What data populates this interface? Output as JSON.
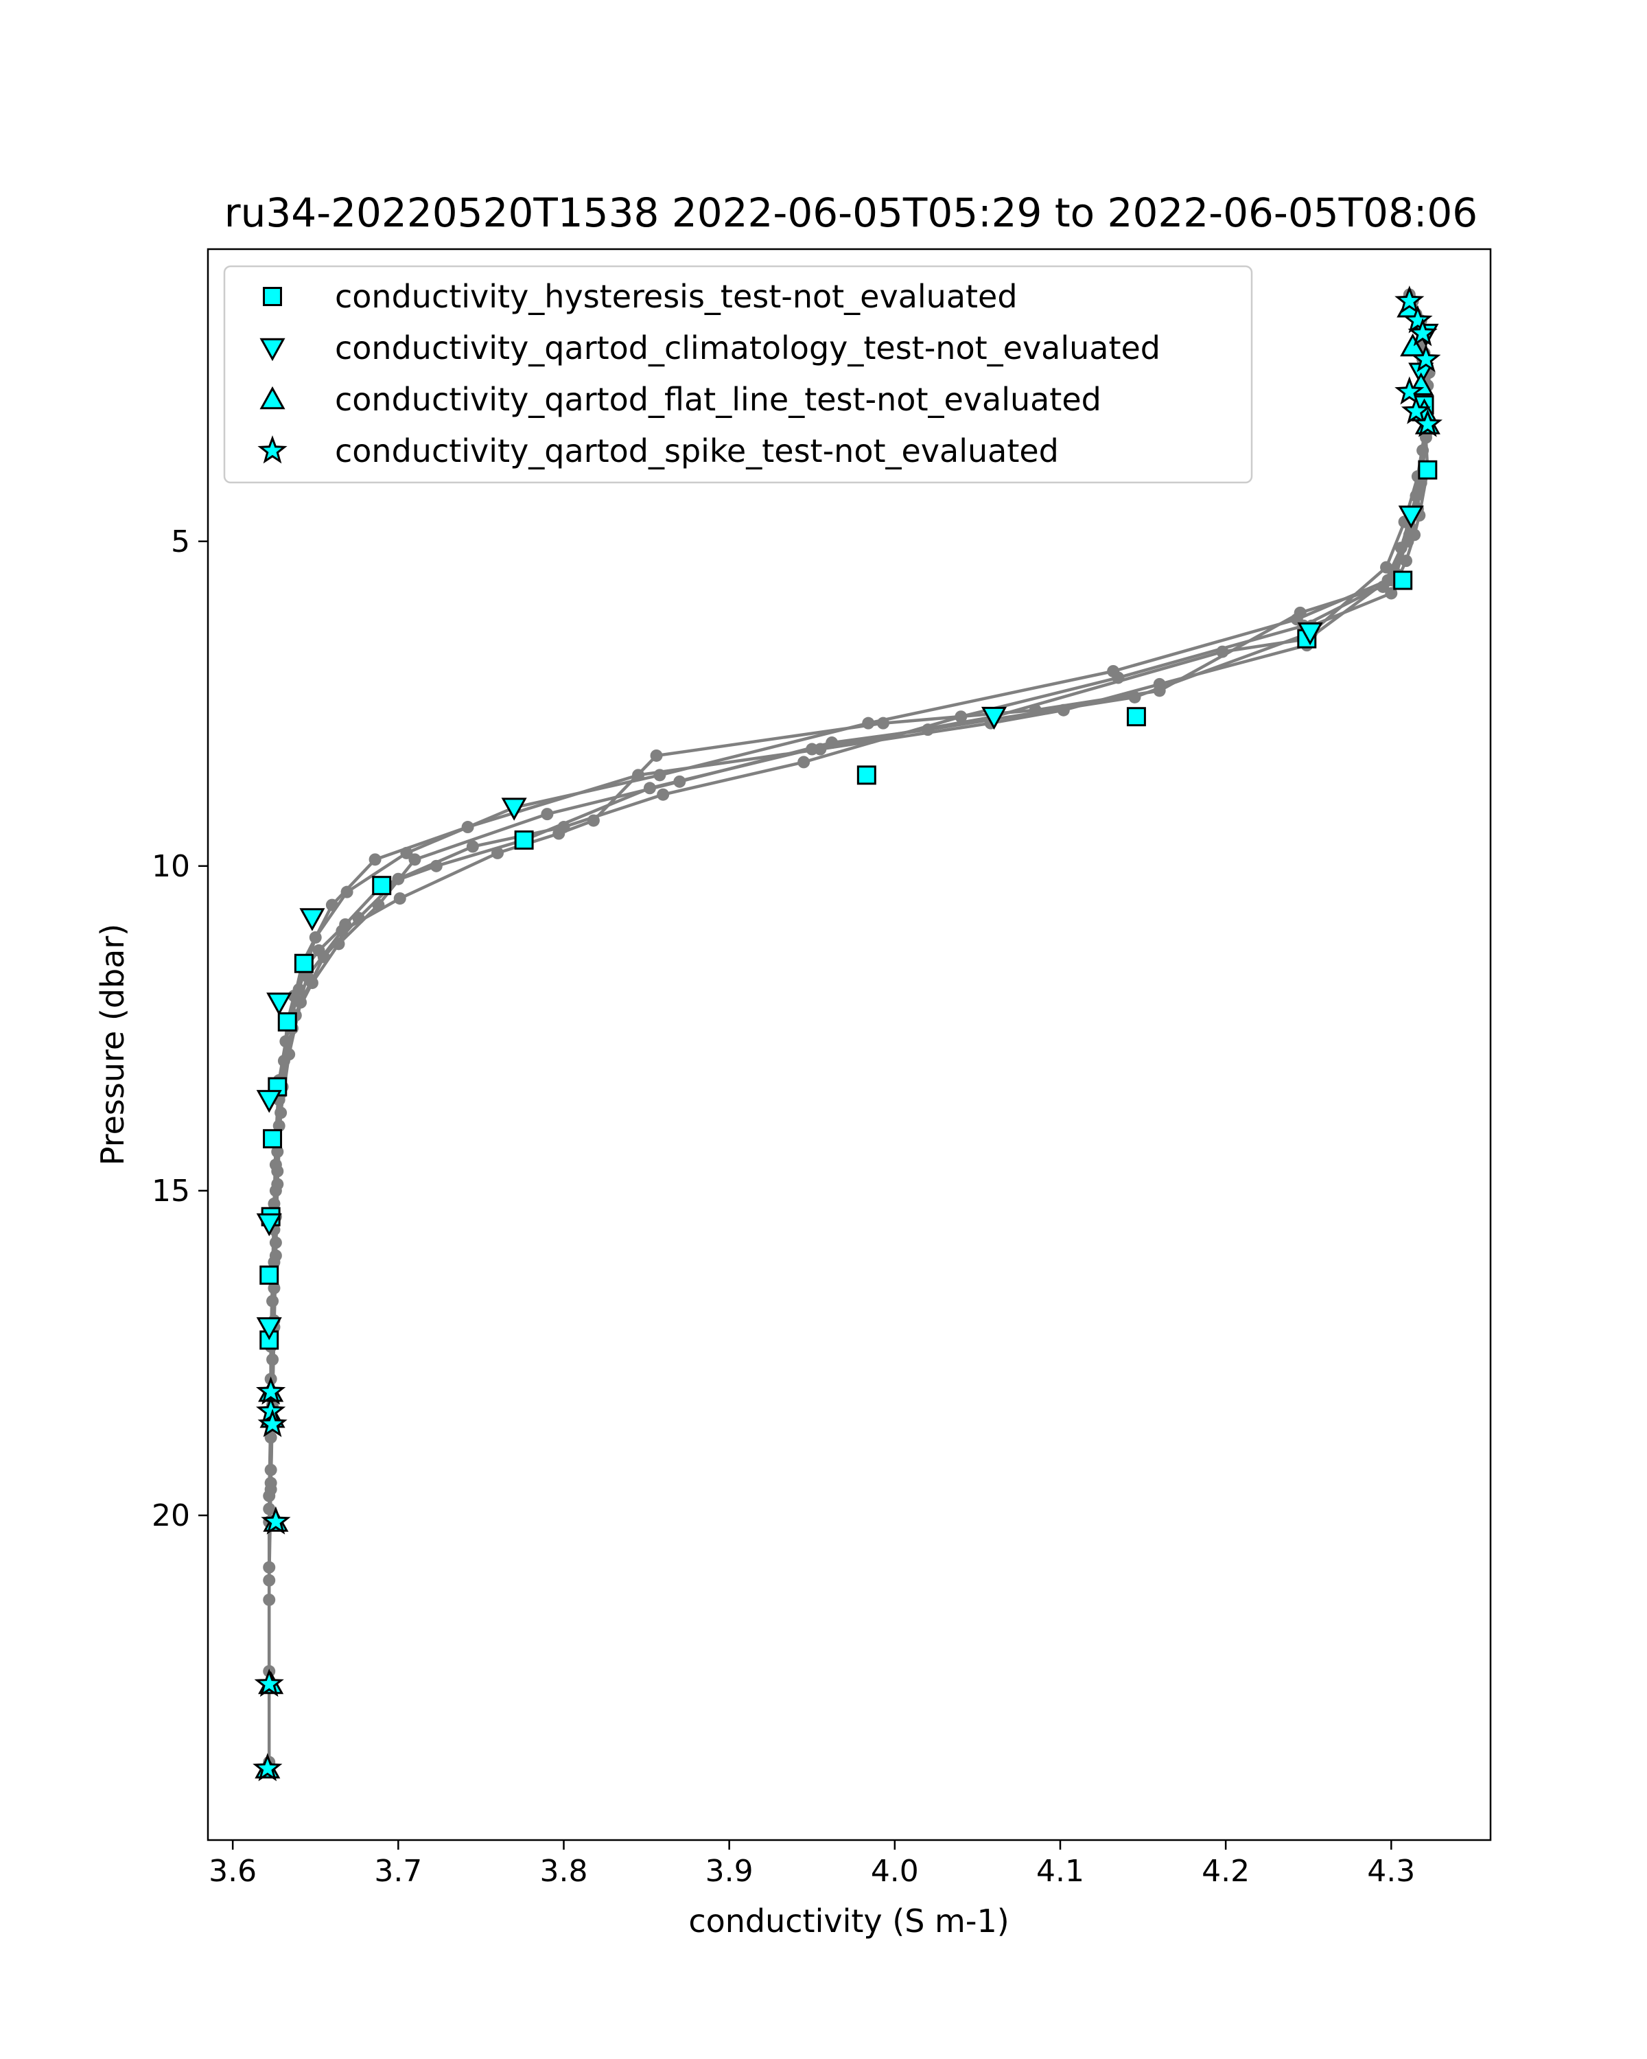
{
  "chart_data": {
    "type": "scatter",
    "title": "ru34-20220520T1538 2022-06-05T05:29 to 2022-06-05T08:06",
    "xlabel": "conductivity (S m-1)",
    "ylabel": "Pressure (dbar)",
    "xlim": [
      3.585,
      4.36
    ],
    "ylim": [
      25.0,
      0.5
    ],
    "y_inverted": true,
    "x_ticks": [
      "3.6",
      "3.7",
      "3.8",
      "3.9",
      "4.0",
      "4.1",
      "4.2",
      "4.3"
    ],
    "x_tick_values": [
      3.6,
      3.7,
      3.8,
      3.9,
      4.0,
      4.1,
      4.2,
      4.3
    ],
    "y_ticks": [
      "5",
      "10",
      "15",
      "20"
    ],
    "y_tick_values": [
      5,
      10,
      15,
      20
    ],
    "grid": false,
    "legend_position": "upper-left",
    "colors": {
      "profile_line": "#808080",
      "marker_fill": "#00ffff",
      "marker_edge": "#000000"
    },
    "profile_series": {
      "name": "",
      "profiles": [
        {
          "x": [
            4.312,
            4.318,
            4.32,
            4.322,
            4.317,
            4.314,
            4.309,
            4.3,
            4.252,
            4.249,
            4.16,
            4.102,
            4.058,
            3.955,
            3.845,
            3.742,
            3.686,
            3.66,
            3.642,
            3.634,
            3.628,
            3.626,
            3.625,
            3.624,
            3.623,
            3.623,
            3.622,
            3.622,
            3.622,
            3.622
          ],
          "y": [
            1.4,
            2.0,
            3.0,
            3.9,
            4.6,
            4.9,
            5.3,
            5.8,
            6.3,
            6.6,
            7.2,
            7.6,
            7.8,
            8.2,
            8.6,
            9.4,
            9.9,
            10.6,
            11.5,
            12.4,
            13.3,
            14.2,
            15.2,
            16.3,
            17.4,
            18.6,
            19.9,
            21.3,
            22.6,
            23.8
          ]
        },
        {
          "x": [
            4.32,
            4.322,
            4.319,
            4.316,
            4.31,
            4.298,
            4.243,
            4.132,
            3.984,
            3.858,
            3.77,
            3.705,
            3.669,
            3.65,
            3.64,
            3.632,
            3.628,
            3.626,
            3.625,
            3.624,
            3.623,
            3.623,
            3.622,
            3.622
          ],
          "y": [
            1.8,
            2.6,
            3.6,
            4.5,
            5.0,
            5.6,
            6.2,
            7.0,
            7.8,
            8.6,
            9.1,
            9.8,
            10.4,
            11.1,
            11.9,
            12.7,
            13.6,
            14.6,
            15.6,
            16.7,
            17.9,
            19.3,
            20.8,
            22.4
          ]
        },
        {
          "x": [
            4.311,
            4.319,
            4.321,
            4.318,
            4.312,
            4.303,
            4.25,
            4.198,
            4.06,
            3.95,
            3.852,
            3.776,
            3.723,
            3.69,
            3.668,
            3.652,
            3.643,
            3.637,
            3.633,
            3.629,
            3.627,
            3.626,
            3.625,
            3.624,
            3.623
          ],
          "y": [
            1.2,
            2.2,
            3.1,
            4.1,
            4.8,
            5.5,
            6.5,
            6.7,
            7.7,
            8.2,
            8.8,
            9.6,
            10.0,
            10.3,
            10.9,
            11.3,
            11.6,
            12.0,
            12.4,
            13.5,
            14.7,
            15.8,
            17.0,
            18.2,
            19.5
          ]
        },
        {
          "x": [
            4.318,
            4.323,
            4.321,
            4.315,
            4.306,
            4.295,
            4.245,
            4.16,
            4.085,
            3.993,
            3.856,
            3.818,
            3.797,
            3.76,
            3.701,
            3.666,
            3.645,
            3.636,
            3.63,
            3.627,
            3.626,
            3.625,
            3.624,
            3.623,
            3.622
          ],
          "y": [
            1.6,
            2.4,
            3.4,
            4.3,
            5.1,
            5.7,
            6.1,
            7.3,
            7.6,
            7.8,
            8.3,
            9.3,
            9.5,
            9.8,
            10.5,
            11.0,
            11.7,
            12.5,
            13.4,
            14.4,
            15.4,
            16.5,
            17.6,
            18.8,
            20.1
          ]
        },
        {
          "x": [
            4.313,
            4.32,
            4.321,
            4.316,
            4.308,
            4.297,
            4.252,
            4.145,
            4.02,
            3.962,
            3.87,
            3.79,
            3.71,
            3.688,
            3.664,
            3.648,
            3.638,
            3.631,
            3.628,
            3.626,
            3.625,
            3.624,
            3.623,
            3.622
          ],
          "y": [
            1.3,
            2.1,
            3.2,
            4.0,
            4.7,
            5.4,
            6.4,
            7.4,
            7.9,
            8.1,
            8.7,
            9.2,
            9.9,
            10.6,
            11.2,
            11.8,
            12.3,
            13.0,
            14.0,
            15.0,
            16.1,
            17.2,
            18.4,
            19.7
          ]
        },
        {
          "x": [
            4.315,
            4.321,
            4.322,
            4.317,
            4.311,
            4.301,
            4.247,
            4.135,
            4.04,
            3.945,
            3.86,
            3.8,
            3.745,
            3.7,
            3.676,
            3.655,
            3.641,
            3.634,
            3.629,
            3.627,
            3.626,
            3.625,
            3.624,
            3.623,
            3.622
          ],
          "y": [
            1.5,
            2.3,
            3.3,
            4.2,
            4.9,
            5.6,
            6.3,
            7.1,
            7.7,
            8.4,
            8.9,
            9.4,
            9.7,
            10.2,
            10.8,
            11.4,
            12.1,
            12.9,
            13.8,
            14.9,
            16.0,
            17.1,
            18.3,
            19.6,
            21.0
          ]
        }
      ]
    },
    "series": [
      {
        "name": "conductivity_hysteresis_test-not_evaluated",
        "marker": "square",
        "x": [
          4.322,
          4.307,
          4.249,
          4.146,
          3.983,
          3.776,
          3.69,
          3.643,
          3.633,
          3.627,
          3.624,
          3.623,
          3.622,
          3.622,
          4.32
        ],
        "y": [
          3.9,
          5.6,
          6.5,
          7.7,
          8.6,
          9.6,
          10.3,
          11.5,
          12.4,
          13.4,
          14.2,
          15.4,
          16.3,
          17.3,
          2.9
        ]
      },
      {
        "name": "conductivity_qartod_climatology_test-not_evaluated",
        "marker": "triangle-down",
        "x": [
          4.312,
          4.251,
          4.06,
          3.77,
          3.648,
          3.628,
          3.622,
          3.622,
          3.622,
          4.321,
          4.318
        ],
        "y": [
          4.6,
          6.4,
          7.7,
          9.1,
          10.8,
          12.1,
          13.6,
          15.5,
          17.1,
          1.8,
          2.4
        ]
      },
      {
        "name": "conductivity_qartod_flat_line_test-not_evaluated",
        "marker": "triangle-up",
        "x": [
          4.311,
          4.313,
          4.318,
          4.32,
          4.322,
          3.623,
          3.624,
          3.626,
          3.623,
          3.621
        ],
        "y": [
          1.4,
          2.0,
          2.6,
          3.0,
          3.2,
          18.1,
          18.5,
          20.1,
          22.6,
          23.9
        ]
      },
      {
        "name": "conductivity_qartod_spike_test-not_evaluated",
        "marker": "star",
        "x": [
          4.311,
          4.316,
          4.319,
          4.321,
          4.311,
          4.315,
          4.322,
          3.623,
          3.623,
          3.624,
          3.626,
          3.622,
          3.621
        ],
        "y": [
          1.3,
          1.6,
          1.8,
          2.2,
          2.7,
          3.0,
          3.2,
          18.1,
          18.4,
          18.6,
          20.1,
          22.6,
          23.9
        ]
      }
    ]
  }
}
